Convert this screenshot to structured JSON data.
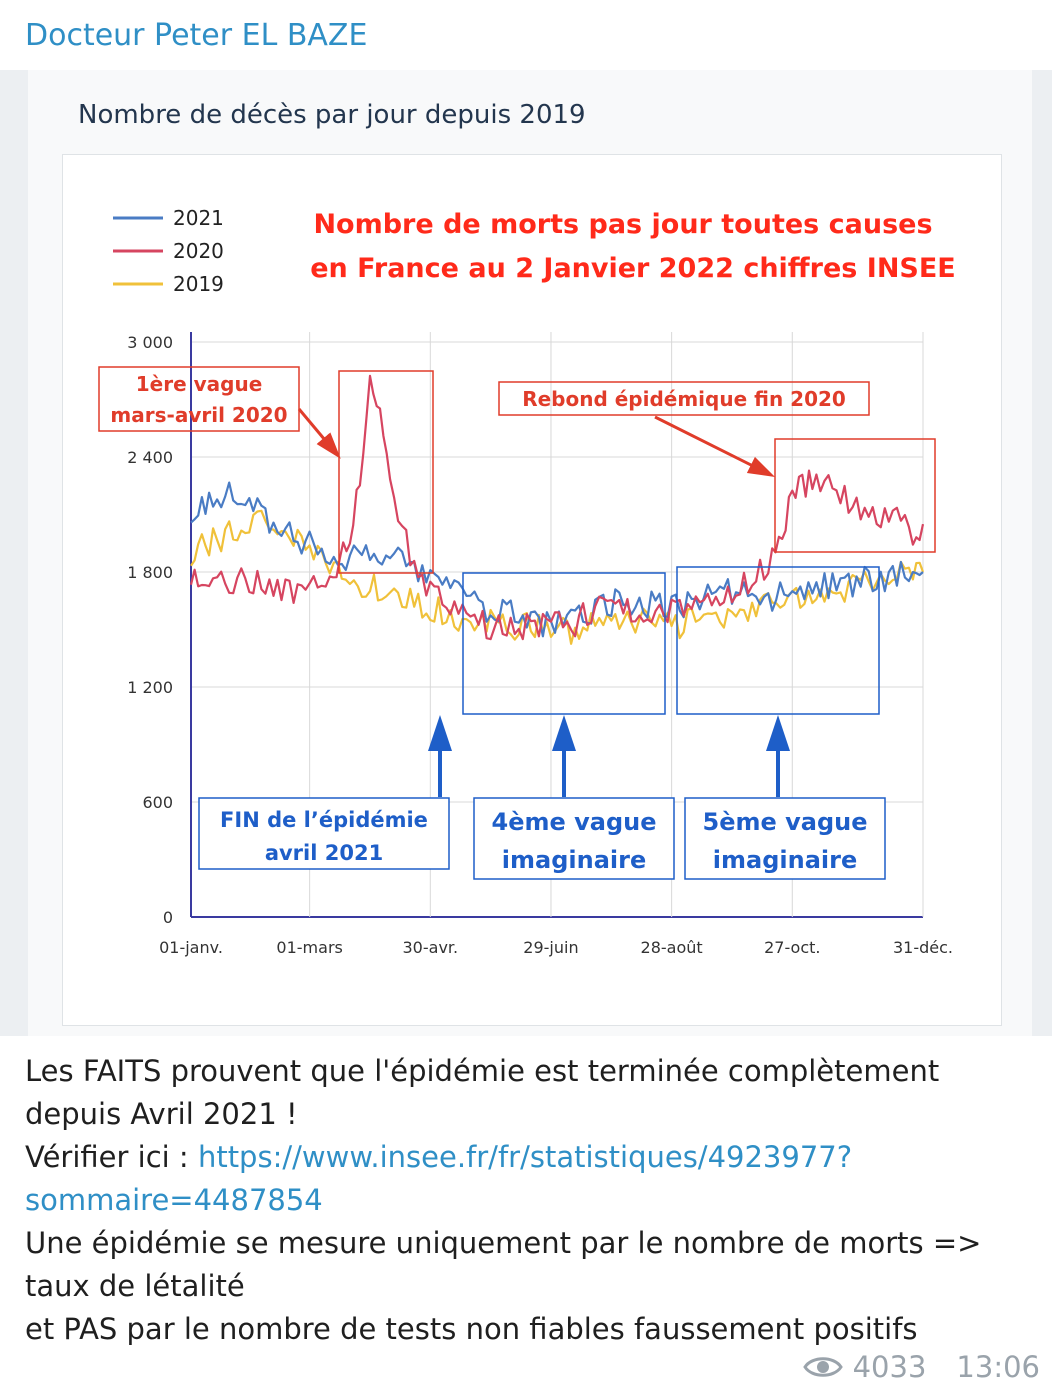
{
  "post": {
    "author": "Docteur Peter EL BAZE",
    "views": "4033",
    "time": "13:06",
    "eye_icon": "eye-icon"
  },
  "card": {
    "title": "Nombre de décès par jour depuis 2019"
  },
  "chart_data": {
    "type": "line",
    "title": "Nombre de morts pas jour toutes causes",
    "subtitle": "en France au 2 Janvier 2022 chiffres INSEE",
    "x_tick_labels": [
      "01-janv.",
      "01-mars",
      "30-avr.",
      "29-juin",
      "28-août",
      "27-oct.",
      "31-déc."
    ],
    "y_tick_labels": [
      "3 000",
      "2 400",
      "1 800",
      "1 200",
      "600",
      "0"
    ],
    "ylim": [
      0,
      3000
    ],
    "xlim": [
      1,
      365
    ],
    "grid": true,
    "legend_position": "top-left",
    "series": [
      {
        "name": "2021",
        "color": "#4a7cc4",
        "x": [
          1,
          10,
          20,
          30,
          40,
          50,
          60,
          70,
          80,
          90,
          100,
          110,
          120,
          130,
          140,
          150,
          160,
          170,
          180,
          190,
          200,
          210,
          220,
          230,
          240,
          250,
          260,
          270,
          280,
          290,
          300,
          310,
          320,
          330,
          340,
          350,
          360,
          365
        ],
        "y": [
          2120,
          2180,
          2220,
          2150,
          2080,
          2000,
          1950,
          1900,
          1880,
          1900,
          1880,
          1820,
          1750,
          1700,
          1640,
          1600,
          1580,
          1560,
          1520,
          1530,
          1600,
          1640,
          1620,
          1630,
          1620,
          1650,
          1680,
          1700,
          1680,
          1670,
          1700,
          1720,
          1720,
          1740,
          1760,
          1780,
          1790,
          1800
        ]
      },
      {
        "name": "2020",
        "color": "#d64560",
        "x": [
          1,
          10,
          20,
          30,
          40,
          50,
          60,
          70,
          75,
          80,
          85,
          90,
          95,
          100,
          110,
          120,
          130,
          140,
          150,
          160,
          170,
          180,
          190,
          200,
          210,
          220,
          230,
          240,
          250,
          260,
          270,
          280,
          290,
          295,
          300,
          305,
          310,
          320,
          330,
          340,
          350,
          360,
          365
        ],
        "y": [
          1800,
          1780,
          1760,
          1740,
          1720,
          1700,
          1760,
          1800,
          1850,
          1950,
          2300,
          2750,
          2650,
          2250,
          1880,
          1700,
          1600,
          1560,
          1520,
          1500,
          1520,
          1540,
          1520,
          1600,
          1640,
          1580,
          1560,
          1600,
          1620,
          1650,
          1700,
          1760,
          1860,
          2000,
          2200,
          2250,
          2280,
          2230,
          2150,
          2100,
          2080,
          2000,
          2050
        ]
      },
      {
        "name": "2019",
        "color": "#f0c13a",
        "x": [
          1,
          10,
          20,
          30,
          40,
          50,
          60,
          70,
          80,
          90,
          100,
          110,
          120,
          130,
          140,
          150,
          160,
          170,
          180,
          190,
          200,
          210,
          220,
          230,
          240,
          250,
          260,
          270,
          280,
          290,
          300,
          310,
          320,
          330,
          340,
          350,
          360,
          365
        ],
        "y": [
          1900,
          1950,
          2000,
          2050,
          2060,
          2030,
          1920,
          1820,
          1760,
          1720,
          1700,
          1650,
          1620,
          1580,
          1550,
          1530,
          1500,
          1520,
          1500,
          1490,
          1520,
          1540,
          1530,
          1550,
          1520,
          1540,
          1560,
          1580,
          1600,
          1620,
          1640,
          1660,
          1680,
          1720,
          1760,
          1780,
          1800,
          1800
        ]
      }
    ],
    "annotations": [
      {
        "id": "vague1",
        "line1": "1ère vague",
        "line2": "mars-avril 2020",
        "color": "#e03c2a"
      },
      {
        "id": "rebond",
        "line1": "Rebond épidémique fin 2020",
        "color": "#e03c2a"
      },
      {
        "id": "fin",
        "line1": "FIN de l’épidémie",
        "line2": "avril 2021",
        "color": "#1e5ec8"
      },
      {
        "id": "vague4",
        "line1": "4ème vague",
        "line2": "imaginaire",
        "color": "#1e5ec8"
      },
      {
        "id": "vague5",
        "line1": "5ème vague",
        "line2": "imaginaire",
        "color": "#1e5ec8"
      }
    ],
    "title_color": "#ff2a1a"
  },
  "message": {
    "line1": "Les FAITS prouvent que l'épidémie est terminée complètement",
    "line2": "depuis Avril 2021 !",
    "verify_prefix": "Vérifier ici : ",
    "link_part1": "https://www.insee.fr/fr/statistiques/4923977?",
    "link_part2": "sommaire=4487854",
    "line4": "Une épidémie se mesure uniquement par le nombre de morts =>",
    "line5": "taux de létalité",
    "line6": "et PAS par le nombre de tests non fiables faussement positifs"
  }
}
